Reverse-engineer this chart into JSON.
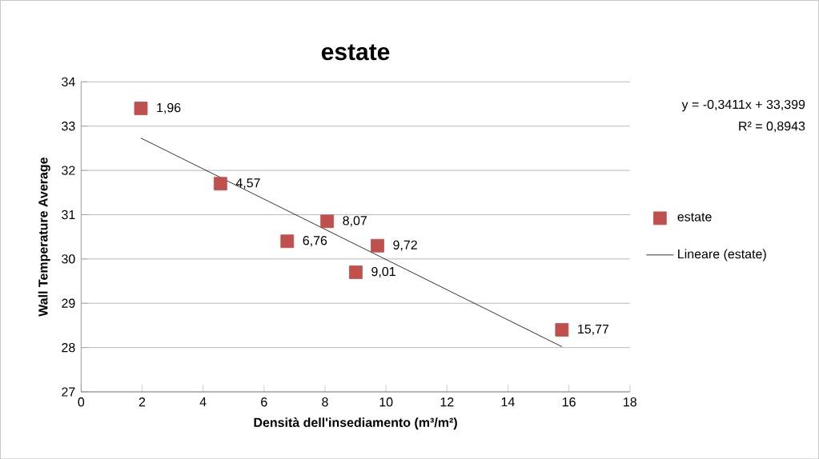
{
  "chart_data": {
    "type": "scatter",
    "title": "estate",
    "xlabel": "Densità dell'insediamento  (m³/m²)",
    "ylabel": "Wall Temperature Average",
    "series": [
      {
        "name": "estate",
        "color": "#c0504d",
        "marker": "square",
        "x": [
          1.96,
          4.57,
          6.76,
          8.07,
          9.01,
          9.72,
          15.77
        ],
        "values": [
          33.4,
          31.7,
          30.4,
          30.85,
          29.7,
          30.3,
          28.4
        ]
      },
      {
        "name": "Lineare (estate)",
        "type": "line",
        "color": "#000000",
        "marker": "none",
        "line_style": "solid",
        "x": [
          1.96,
          15.77
        ],
        "values": [
          32.73,
          28.02
        ]
      }
    ],
    "annotations": [
      {
        "text": "1,96",
        "x": 1.96,
        "y": 33.4
      },
      {
        "text": "4,57",
        "x": 4.57,
        "y": 31.7
      },
      {
        "text": "6,76",
        "x": 6.76,
        "y": 30.4
      },
      {
        "text": "8,07",
        "x": 8.07,
        "y": 30.85
      },
      {
        "text": "9,01",
        "x": 9.01,
        "y": 29.7
      },
      {
        "text": "9,72",
        "x": 9.72,
        "y": 30.3
      },
      {
        "text": "15,77",
        "x": 15.77,
        "y": 28.4
      },
      "y = -0,3411x + 33,399",
      "R² = 0,8943"
    ],
    "xlim": [
      0,
      18
    ],
    "ylim": [
      27,
      34
    ],
    "xticks": [
      0,
      2,
      4,
      6,
      8,
      10,
      12,
      14,
      16,
      18
    ],
    "yticks": [
      27,
      28,
      29,
      30,
      31,
      32,
      33,
      34
    ],
    "grid": "y",
    "legend": "right"
  }
}
